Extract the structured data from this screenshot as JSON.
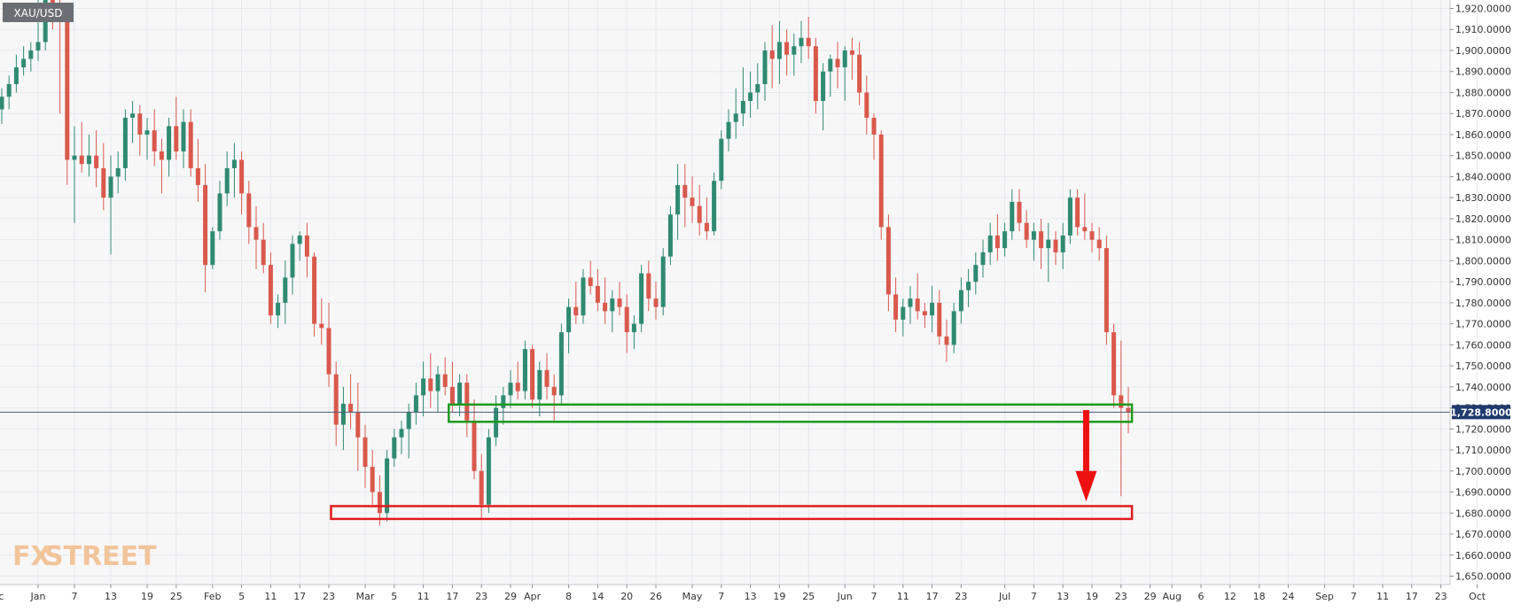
{
  "symbol_label": "XAU/USD",
  "watermark": {
    "fx": "FX",
    "street": "STREET"
  },
  "price_tag": "1,728.8000",
  "colors": {
    "up": "#2f8a71",
    "down": "#d9594c",
    "support_box": "#1e9a1e",
    "target_box": "#e21b1b",
    "arrow": "#ee1111",
    "price_line": "#4a5a7a",
    "price_tag_bg": "#1f3a6d",
    "grid": "#e6e8ec",
    "plot_bg": "#f7f7f8",
    "watermark": "#f2c49a"
  },
  "chart_data": {
    "type": "candlestick",
    "title": "",
    "xlabel": "",
    "ylabel": "",
    "ylim": [
      1646,
      1924
    ],
    "y_ticks": [
      "1,920.0000",
      "1,910.0000",
      "1,900.0000",
      "1,890.0000",
      "1,880.0000",
      "1,870.0000",
      "1,860.0000",
      "1,850.0000",
      "1,840.0000",
      "1,830.0000",
      "1,820.0000",
      "1,810.0000",
      "1,800.0000",
      "1,790.0000",
      "1,780.0000",
      "1,770.0000",
      "1,760.0000",
      "1,750.0000",
      "1,740.0000",
      "1,730.0000",
      "1,720.0000",
      "1,710.0000",
      "1,700.0000",
      "1,690.0000",
      "1,680.0000",
      "1,670.0000",
      "1,660.0000",
      "1,650.0000"
    ],
    "y_tick_values": [
      1920,
      1910,
      1900,
      1890,
      1880,
      1870,
      1860,
      1850,
      1840,
      1830,
      1820,
      1810,
      1800,
      1790,
      1780,
      1770,
      1760,
      1750,
      1740,
      1730,
      1720,
      1710,
      1700,
      1690,
      1680,
      1670,
      1660,
      1650
    ],
    "x_ticks": [
      {
        "label": "Dec",
        "i": -1
      },
      {
        "label": "Jan",
        "i": 5
      },
      {
        "label": "7",
        "i": 10
      },
      {
        "label": "13",
        "i": 15
      },
      {
        "label": "19",
        "i": 20
      },
      {
        "label": "25",
        "i": 24
      },
      {
        "label": "Feb",
        "i": 29
      },
      {
        "label": "5",
        "i": 33
      },
      {
        "label": "11",
        "i": 37
      },
      {
        "label": "17",
        "i": 41
      },
      {
        "label": "23",
        "i": 45
      },
      {
        "label": "Mar",
        "i": 50
      },
      {
        "label": "5",
        "i": 54
      },
      {
        "label": "11",
        "i": 58
      },
      {
        "label": "17",
        "i": 62
      },
      {
        "label": "23",
        "i": 66
      },
      {
        "label": "29",
        "i": 70
      },
      {
        "label": "Apr",
        "i": 73
      },
      {
        "label": "8",
        "i": 78
      },
      {
        "label": "14",
        "i": 82
      },
      {
        "label": "20",
        "i": 86
      },
      {
        "label": "26",
        "i": 90
      },
      {
        "label": "May",
        "i": 95
      },
      {
        "label": "7",
        "i": 99
      },
      {
        "label": "13",
        "i": 103
      },
      {
        "label": "19",
        "i": 107
      },
      {
        "label": "25",
        "i": 111
      },
      {
        "label": "Jun",
        "i": 116
      },
      {
        "label": "7",
        "i": 120
      },
      {
        "label": "11",
        "i": 124
      },
      {
        "label": "17",
        "i": 128
      },
      {
        "label": "23",
        "i": 132
      },
      {
        "label": "Jul",
        "i": 138
      },
      {
        "label": "7",
        "i": 142
      },
      {
        "label": "13",
        "i": 146
      },
      {
        "label": "19",
        "i": 150
      },
      {
        "label": "23",
        "i": 154
      },
      {
        "label": "29",
        "i": 158
      },
      {
        "label": "Aug",
        "i": 161
      },
      {
        "label": "6",
        "i": 165
      },
      {
        "label": "12",
        "i": 169
      },
      {
        "label": "18",
        "i": 173
      },
      {
        "label": "24",
        "i": 177
      },
      {
        "label": "Sep",
        "i": 182
      },
      {
        "label": "7",
        "i": 186
      },
      {
        "label": "11",
        "i": 190
      },
      {
        "label": "17",
        "i": 194
      },
      {
        "label": "23",
        "i": 198
      },
      {
        "label": "Oct",
        "i": 203
      }
    ],
    "ohlc": [
      [
        1872,
        1882,
        1865,
        1878
      ],
      [
        1878,
        1888,
        1872,
        1884
      ],
      [
        1884,
        1898,
        1880,
        1892
      ],
      [
        1892,
        1902,
        1888,
        1896
      ],
      [
        1896,
        1904,
        1890,
        1900
      ],
      [
        1900,
        1924,
        1895,
        1904
      ],
      [
        1904,
        1958,
        1900,
        1948
      ],
      [
        1948,
        1960,
        1910,
        1920
      ],
      [
        1920,
        1928,
        1870,
        1914
      ],
      [
        1914,
        1918,
        1836,
        1848
      ],
      [
        1848,
        1864,
        1818,
        1850
      ],
      [
        1850,
        1866,
        1842,
        1846
      ],
      [
        1846,
        1860,
        1840,
        1850
      ],
      [
        1850,
        1862,
        1835,
        1844
      ],
      [
        1844,
        1856,
        1824,
        1830
      ],
      [
        1830,
        1850,
        1803,
        1840
      ],
      [
        1840,
        1852,
        1832,
        1844
      ],
      [
        1844,
        1872,
        1838,
        1868
      ],
      [
        1868,
        1876,
        1856,
        1870
      ],
      [
        1870,
        1874,
        1850,
        1860
      ],
      [
        1860,
        1868,
        1848,
        1862
      ],
      [
        1862,
        1872,
        1845,
        1852
      ],
      [
        1852,
        1858,
        1832,
        1848
      ],
      [
        1848,
        1868,
        1840,
        1864
      ],
      [
        1864,
        1878,
        1848,
        1852
      ],
      [
        1852,
        1872,
        1844,
        1866
      ],
      [
        1866,
        1872,
        1840,
        1844
      ],
      [
        1844,
        1858,
        1828,
        1836
      ],
      [
        1836,
        1846,
        1785,
        1798
      ],
      [
        1798,
        1816,
        1796,
        1814
      ],
      [
        1814,
        1838,
        1810,
        1832
      ],
      [
        1832,
        1852,
        1826,
        1844
      ],
      [
        1844,
        1856,
        1830,
        1848
      ],
      [
        1848,
        1852,
        1822,
        1832
      ],
      [
        1832,
        1838,
        1808,
        1816
      ],
      [
        1816,
        1826,
        1796,
        1810
      ],
      [
        1810,
        1818,
        1794,
        1798
      ],
      [
        1798,
        1804,
        1770,
        1774
      ],
      [
        1774,
        1784,
        1768,
        1780
      ],
      [
        1780,
        1800,
        1770,
        1792
      ],
      [
        1792,
        1812,
        1784,
        1808
      ],
      [
        1808,
        1814,
        1800,
        1812
      ],
      [
        1812,
        1818,
        1792,
        1802
      ],
      [
        1802,
        1804,
        1764,
        1770
      ],
      [
        1770,
        1782,
        1760,
        1768
      ],
      [
        1768,
        1780,
        1740,
        1746
      ],
      [
        1746,
        1752,
        1712,
        1722
      ],
      [
        1722,
        1740,
        1710,
        1732
      ],
      [
        1732,
        1746,
        1720,
        1728
      ],
      [
        1728,
        1742,
        1700,
        1716
      ],
      [
        1716,
        1722,
        1692,
        1702
      ],
      [
        1702,
        1710,
        1684,
        1690
      ],
      [
        1690,
        1698,
        1674,
        1680
      ],
      [
        1680,
        1710,
        1676,
        1706
      ],
      [
        1706,
        1720,
        1702,
        1716
      ],
      [
        1716,
        1724,
        1708,
        1720
      ],
      [
        1720,
        1732,
        1706,
        1728
      ],
      [
        1728,
        1742,
        1722,
        1736
      ],
      [
        1736,
        1752,
        1726,
        1744
      ],
      [
        1744,
        1756,
        1730,
        1738
      ],
      [
        1738,
        1750,
        1728,
        1746
      ],
      [
        1746,
        1754,
        1736,
        1740
      ],
      [
        1740,
        1752,
        1728,
        1732
      ],
      [
        1732,
        1746,
        1726,
        1742
      ],
      [
        1742,
        1746,
        1716,
        1724
      ],
      [
        1724,
        1734,
        1696,
        1700
      ],
      [
        1700,
        1708,
        1677,
        1684
      ],
      [
        1684,
        1720,
        1680,
        1716
      ],
      [
        1716,
        1736,
        1712,
        1730
      ],
      [
        1730,
        1740,
        1722,
        1736
      ],
      [
        1736,
        1748,
        1730,
        1742
      ],
      [
        1742,
        1752,
        1734,
        1738
      ],
      [
        1738,
        1762,
        1734,
        1758
      ],
      [
        1758,
        1760,
        1730,
        1734
      ],
      [
        1734,
        1752,
        1726,
        1748
      ],
      [
        1748,
        1756,
        1734,
        1740
      ],
      [
        1740,
        1746,
        1724,
        1736
      ],
      [
        1736,
        1770,
        1732,
        1766
      ],
      [
        1766,
        1782,
        1756,
        1778
      ],
      [
        1778,
        1790,
        1770,
        1774
      ],
      [
        1774,
        1796,
        1770,
        1792
      ],
      [
        1792,
        1800,
        1784,
        1788
      ],
      [
        1788,
        1796,
        1776,
        1780
      ],
      [
        1780,
        1792,
        1770,
        1776
      ],
      [
        1776,
        1786,
        1766,
        1782
      ],
      [
        1782,
        1790,
        1774,
        1778
      ],
      [
        1778,
        1784,
        1756,
        1766
      ],
      [
        1766,
        1774,
        1758,
        1770
      ],
      [
        1770,
        1798,
        1766,
        1794
      ],
      [
        1794,
        1800,
        1776,
        1782
      ],
      [
        1782,
        1790,
        1772,
        1778
      ],
      [
        1778,
        1806,
        1774,
        1802
      ],
      [
        1802,
        1826,
        1798,
        1822
      ],
      [
        1822,
        1846,
        1810,
        1836
      ],
      [
        1836,
        1846,
        1816,
        1830
      ],
      [
        1830,
        1840,
        1818,
        1826
      ],
      [
        1826,
        1836,
        1812,
        1818
      ],
      [
        1818,
        1830,
        1810,
        1814
      ],
      [
        1814,
        1842,
        1812,
        1838
      ],
      [
        1838,
        1862,
        1834,
        1858
      ],
      [
        1858,
        1872,
        1852,
        1866
      ],
      [
        1866,
        1882,
        1858,
        1870
      ],
      [
        1870,
        1892,
        1864,
        1876
      ],
      [
        1876,
        1890,
        1868,
        1880
      ],
      [
        1880,
        1894,
        1872,
        1884
      ],
      [
        1884,
        1904,
        1876,
        1900
      ],
      [
        1900,
        1912,
        1882,
        1896
      ],
      [
        1896,
        1914,
        1884,
        1904
      ],
      [
        1904,
        1910,
        1888,
        1898
      ],
      [
        1898,
        1908,
        1888,
        1902
      ],
      [
        1902,
        1914,
        1894,
        1906
      ],
      [
        1906,
        1916,
        1896,
        1902
      ],
      [
        1902,
        1906,
        1870,
        1876
      ],
      [
        1876,
        1894,
        1862,
        1890
      ],
      [
        1890,
        1898,
        1878,
        1896
      ],
      [
        1896,
        1904,
        1882,
        1892
      ],
      [
        1892,
        1902,
        1876,
        1900
      ],
      [
        1900,
        1906,
        1886,
        1898
      ],
      [
        1898,
        1904,
        1874,
        1880
      ],
      [
        1880,
        1888,
        1860,
        1868
      ],
      [
        1868,
        1870,
        1848,
        1860
      ],
      [
        1860,
        1862,
        1810,
        1816
      ],
      [
        1816,
        1822,
        1776,
        1784
      ],
      [
        1784,
        1792,
        1766,
        1772
      ],
      [
        1772,
        1782,
        1764,
        1778
      ],
      [
        1778,
        1788,
        1770,
        1782
      ],
      [
        1782,
        1794,
        1772,
        1776
      ],
      [
        1776,
        1780,
        1768,
        1774
      ],
      [
        1774,
        1788,
        1766,
        1780
      ],
      [
        1780,
        1786,
        1760,
        1764
      ],
      [
        1764,
        1772,
        1752,
        1760
      ],
      [
        1760,
        1780,
        1756,
        1776
      ],
      [
        1776,
        1792,
        1770,
        1786
      ],
      [
        1786,
        1796,
        1778,
        1790
      ],
      [
        1790,
        1804,
        1784,
        1798
      ],
      [
        1798,
        1810,
        1792,
        1804
      ],
      [
        1804,
        1818,
        1798,
        1812
      ],
      [
        1812,
        1822,
        1800,
        1806
      ],
      [
        1806,
        1818,
        1802,
        1814
      ],
      [
        1814,
        1834,
        1810,
        1828
      ],
      [
        1828,
        1834,
        1814,
        1818
      ],
      [
        1818,
        1824,
        1806,
        1810
      ],
      [
        1810,
        1818,
        1800,
        1814
      ],
      [
        1814,
        1820,
        1796,
        1806
      ],
      [
        1806,
        1818,
        1790,
        1810
      ],
      [
        1810,
        1814,
        1798,
        1804
      ],
      [
        1804,
        1818,
        1796,
        1812
      ],
      [
        1812,
        1834,
        1808,
        1830
      ],
      [
        1830,
        1834,
        1812,
        1816
      ],
      [
        1816,
        1832,
        1810,
        1814
      ],
      [
        1814,
        1818,
        1804,
        1810
      ],
      [
        1810,
        1816,
        1800,
        1806
      ],
      [
        1806,
        1812,
        1760,
        1766
      ],
      [
        1766,
        1770,
        1730,
        1736
      ],
      [
        1736,
        1762,
        1688,
        1730
      ],
      [
        1730,
        1740,
        1718,
        1728
      ]
    ]
  }
}
